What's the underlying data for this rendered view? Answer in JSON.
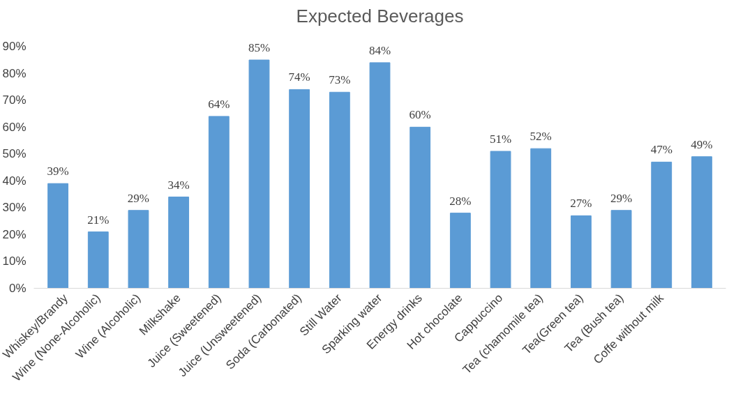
{
  "chart_data": {
    "type": "bar",
    "title": "Expected Beverages",
    "categories": [
      "Whiskey/Brandy",
      "Wine (None-Alcoholic)",
      "Wine (Alcoholic)",
      "Milkshake",
      "Juice (Sweetened)",
      "Juice (Unsweetened)",
      "Soda (Carbonated)",
      "Still Water",
      "Sparking water",
      "Energy drinks",
      "Hot chocolate",
      "Cappuccino",
      "Tea (chamomile tea)",
      "Tea(Green tea)",
      "Tea (Bush tea)",
      "Coffe without milk",
      null
    ],
    "values": [
      39,
      21,
      29,
      34,
      64,
      85,
      74,
      73,
      84,
      60,
      28,
      51,
      52,
      27,
      29,
      47,
      49
    ],
    "value_labels": [
      "39%",
      "21%",
      "29%",
      "34%",
      "64%",
      "85%",
      "74%",
      "73%",
      "84%",
      "60%",
      "28%",
      "51%",
      "52%",
      "27%",
      "29%",
      "47%",
      "49%"
    ],
    "color": "#5b9bd5",
    "ylim": [
      0,
      90
    ],
    "yticks": [
      {
        "value": 0,
        "label": "0%"
      },
      {
        "value": 10,
        "label": "10%"
      },
      {
        "value": 20,
        "label": "20%"
      },
      {
        "value": 30,
        "label": "30%"
      },
      {
        "value": 40,
        "label": "40%"
      },
      {
        "value": 50,
        "label": "50%"
      },
      {
        "value": 60,
        "label": "60%"
      },
      {
        "value": 70,
        "label": "70%"
      },
      {
        "value": 80,
        "label": "80%"
      },
      {
        "value": 90,
        "label": "90%"
      }
    ],
    "grid": false
  }
}
